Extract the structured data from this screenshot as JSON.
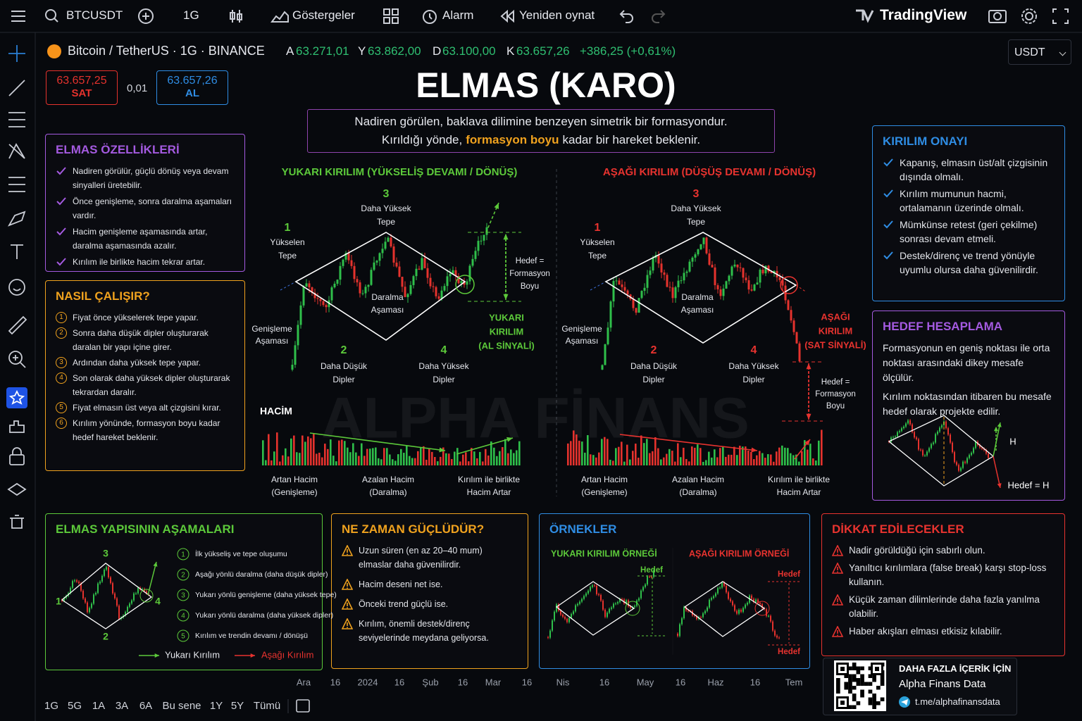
{
  "toolbar": {
    "symbol": "BTCUSDT",
    "interval": "1G",
    "indicators": "Göstergeler",
    "alarm": "Alarm",
    "replay": "Yeniden oynat",
    "brand": "TradingView"
  },
  "symbol_bar": {
    "name": "Bitcoin / TetherUS · 1G · BINANCE",
    "ohlc": [
      {
        "label": "A",
        "value": "63.271,01"
      },
      {
        "label": "Y",
        "value": "63.862,00"
      },
      {
        "label": "D",
        "value": "63.100,00"
      },
      {
        "label": "K",
        "value": "63.657,26"
      }
    ],
    "change": "+386,25 (+0,61%)",
    "currency": "USDT"
  },
  "trade": {
    "sell_price": "63.657,25",
    "sell": "SAT",
    "spread": "0,01",
    "buy_price": "63.657,26",
    "buy": "AL"
  },
  "header": {
    "title": "ELMAS (KARO)",
    "subtitle_line1": "Nadiren görülen, baklava dilimine benzeyen simetrik bir formasyondur.",
    "subtitle_line2": [
      "Kırıldığı yönde,",
      "formasyon boyu",
      "kadar bir hareket beklenir."
    ]
  },
  "features": {
    "title": "ELMAS ÖZELLİKLERİ",
    "items": [
      "Nadiren görülür, güçlü dönüş veya devam sinyalleri üretebilir.",
      "Önce genişleme, sonra daralma aşamaları vardır.",
      "Hacim genişleme aşamasında artar, daralma aşamasında azalır.",
      "Kırılım ile birlikte hacim tekrar artar."
    ]
  },
  "how_it_works": {
    "title": "NASIL ÇALIŞIR?",
    "items": [
      {
        "n": "1",
        "text": "Fiyat önce yükselerek tepe yapar."
      },
      {
        "n": "2",
        "text": "Sonra daha düşük dipler oluşturarak daralan bir yapı içine girer."
      },
      {
        "n": "3",
        "text": "Ardından daha yüksek tepe yapar."
      },
      {
        "n": "4",
        "text": "Son olarak daha yüksek dipler oluşturarak tekrardan daralır."
      },
      {
        "n": "5",
        "text": "Fiyat elmasın üst veya alt çizgisini kırar."
      },
      {
        "n": "6",
        "text": "Kırılım yönünde, formasyon boyu kadar hedef hareket beklenir."
      }
    ]
  },
  "up_pattern": {
    "title": "YUKARI KIRILIM (YÜKSELİŞ DEVAMI / DÖNÜŞ)",
    "points": [
      {
        "n": "1",
        "label": [
          "Yükselen",
          "Tepe"
        ]
      },
      {
        "n": "2",
        "label": [
          "Daha Düşük",
          "Dipler"
        ]
      },
      {
        "n": "3",
        "label": [
          "Daha Yüksek",
          "Tepe"
        ]
      },
      {
        "n": "4",
        "label": [
          "Daha Yüksek",
          "Dipler"
        ]
      }
    ],
    "expansion": [
      "Genişleme",
      "Aşaması"
    ],
    "contraction": [
      "Daralma",
      "Aşaması"
    ],
    "target": [
      "Hedef =",
      "Formasyon",
      "Boyu"
    ],
    "signal": [
      "YUKARI",
      "KIRILIM",
      "(AL SİNYALİ)"
    ],
    "volume_label": "HACİM",
    "volume_notes": [
      [
        "Artan Hacim",
        "(Genişleme)"
      ],
      [
        "Azalan Hacim",
        "(Daralma)"
      ],
      [
        "Kırılım ile birlikte",
        "Hacim Artar"
      ]
    ]
  },
  "down_pattern": {
    "title": "AŞAĞI KIRILIM (DÜŞÜŞ DEVAMI / DÖNÜŞ)",
    "points": [
      {
        "n": "1",
        "label": [
          "Yükselen",
          "Tepe"
        ]
      },
      {
        "n": "2",
        "label": [
          "Daha Düşük",
          "Dipler"
        ]
      },
      {
        "n": "3",
        "label": [
          "Daha Yüksek",
          "Tepe"
        ]
      },
      {
        "n": "4",
        "label": [
          "Daha Yüksek",
          "Dipler"
        ]
      }
    ],
    "expansion": [
      "Genişleme",
      "Aşaması"
    ],
    "contraction": [
      "Daralma",
      "Aşaması"
    ],
    "target": [
      "Hedef =",
      "Formasyon",
      "Boyu"
    ],
    "signal": [
      "AŞAĞI",
      "KIRILIM",
      "(SAT SİNYALİ)"
    ],
    "volume_notes": [
      [
        "Artan Hacim",
        "(Genişleme)"
      ],
      [
        "Azalan Hacim",
        "(Daralma)"
      ],
      [
        "Kırılım ile birlikte",
        "Hacim Artar"
      ]
    ]
  },
  "watermark": "ALPHA FİNANS",
  "confirmation": {
    "title": "KIRILIM ONAYI",
    "items": [
      "Kapanış, elmasın üst/alt çizgisinin dışında olmalı.",
      "Kırılım mumunun hacmi, ortalamanın üzerinde olmalı.",
      "Mümkünse retest (geri çekilme) sonrası devam etmeli.",
      "Destek/direnç ve trend yönüyle uyumlu olursa daha güvenilirdir."
    ]
  },
  "target_calc": {
    "title": "HEDEF HESAPLAMA",
    "paragraphs": [
      "Formasyonun en geniş noktası ile orta noktası arasındaki dikey mesafe ölçülür.",
      "Kırılım noktasından itibaren bu mesafe hedef olarak projekte edilir."
    ],
    "h_label": "H",
    "target_label": "Hedef = H"
  },
  "stages": {
    "title": "ELMAS YAPISININ AŞAMALARI",
    "points": [
      "1",
      "2",
      "3",
      "4"
    ],
    "items": [
      {
        "n": "1",
        "text": "İlk yükseliş ve tepe oluşumu"
      },
      {
        "n": "2",
        "text": "Aşağı yönlü daralma (daha düşük dipler)"
      },
      {
        "n": "3",
        "text": "Yukarı yönlü genişleme (daha yüksek tepe)"
      },
      {
        "n": "4",
        "text": "Yukarı yönlü daralma (daha yüksek dipler)"
      },
      {
        "n": "5",
        "text": "Kırılım ve trendin devamı / dönüşü"
      }
    ],
    "legend_up": "Yukarı Kırılım",
    "legend_down": "Aşağı Kırılım"
  },
  "strong_when": {
    "title": "NE ZAMAN GÜÇLÜDÜR?",
    "items": [
      "Uzun süren (en az 20–40 mum) elmaslar daha güvenilirdir.",
      "Hacim deseni net ise.",
      "Önceki trend güçlü ise.",
      "Kırılım, önemli destek/direnç seviyelerinde meydana geliyorsa."
    ]
  },
  "examples": {
    "title": "ÖRNEKLER",
    "up_title": "YUKARI KIRILIM ÖRNEĞİ",
    "down_title": "AŞAĞI KIRILIM ÖRNEĞİ",
    "target": "Hedef"
  },
  "caution": {
    "title": "DİKKAT EDİLECEKLER",
    "items": [
      "Nadir görüldüğü için sabırlı olun.",
      "Yanıltıcı kırılımlara (false break) karşı stop-loss kullanın.",
      "Küçük zaman dilimlerinde daha fazla yanılma olabilir.",
      "Haber akışları elması etkisiz kılabilir."
    ]
  },
  "footer_card": {
    "heading": "DAHA FAZLA İÇERİK İÇİN",
    "name": "Alpha Finans Data",
    "link": "t.me/alphafinansdata"
  },
  "time_axis": [
    "Ara",
    "16",
    "2024",
    "16",
    "Şub",
    "16",
    "Mar",
    "16",
    "Nis",
    "16",
    "May",
    "16",
    "Haz",
    "16",
    "Tem"
  ],
  "ranges": [
    "1G",
    "5G",
    "1A",
    "3A",
    "6A",
    "Bu sene",
    "1Y",
    "5Y",
    "Tümü"
  ]
}
